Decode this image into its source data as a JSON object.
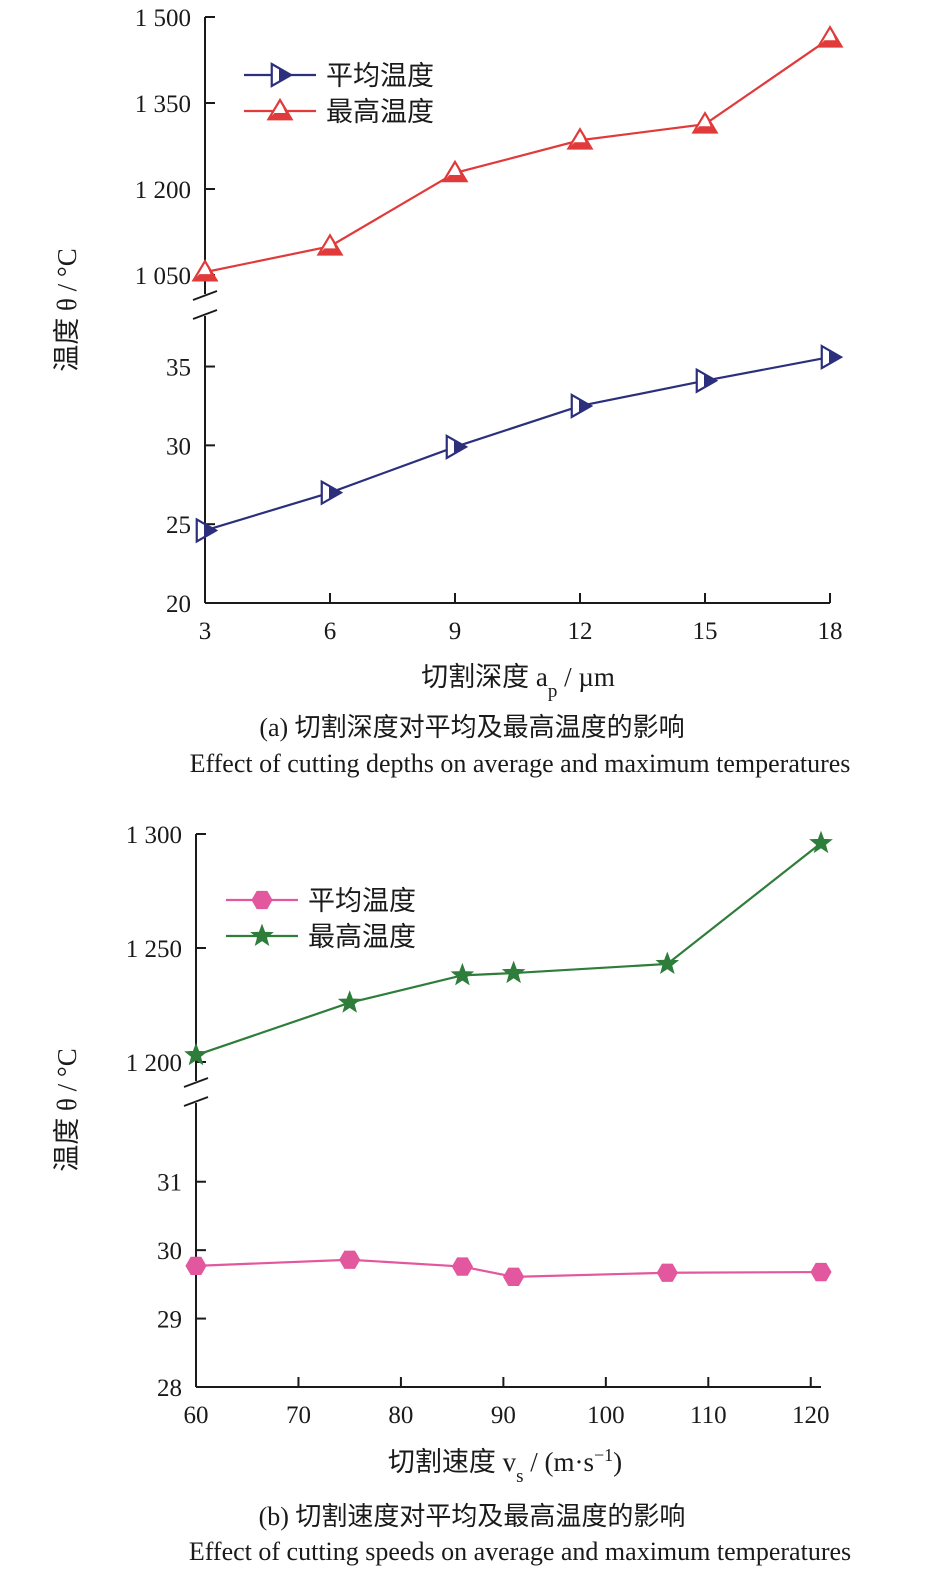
{
  "chart_data": [
    {
      "type": "line",
      "caption_cn": "(a) 切割深度对平均及最高温度的影响",
      "caption_en": "Effect of cutting depths on average and maximum temperatures",
      "xlabel": "切割深度 a",
      "xlabel_sub": "p",
      "xlabel_unit": " / µm",
      "ylabel": "温度 θ / °C",
      "x": [
        3,
        6,
        9,
        12,
        15,
        18
      ],
      "xticks": [
        "3",
        "6",
        "9",
        "12",
        "15",
        "18"
      ],
      "axis_break": true,
      "y_upper": {
        "ylim": [
          1050,
          1500
        ],
        "ticks": [
          1050,
          1200,
          1350,
          1500
        ],
        "tick_labels": [
          "1 050",
          "1 200",
          "1 350",
          "1 500"
        ]
      },
      "y_lower": {
        "ylim": [
          20,
          37
        ],
        "ticks": [
          20,
          25,
          30,
          35
        ],
        "tick_labels": [
          "20",
          "25",
          "30",
          "35"
        ]
      },
      "legend_position": "top-left",
      "series": [
        {
          "name": "平均温度",
          "panel": "lower",
          "marker": "triangle-right",
          "color": "#2b2f7c",
          "values": [
            24.6,
            27.0,
            29.9,
            32.5,
            34.1,
            35.6
          ]
        },
        {
          "name": "最高温度",
          "panel": "upper",
          "marker": "triangle-up",
          "color": "#e03a3a",
          "values": [
            1055,
            1100,
            1228,
            1285,
            1313,
            1463
          ]
        }
      ]
    },
    {
      "type": "line",
      "caption_cn": "(b) 切割速度对平均及最高温度的影响",
      "caption_en": "Effect of cutting speeds on average and maximum temperatures",
      "xlabel": "切割速度 v",
      "xlabel_sub": "s",
      "xlabel_unit": " / (m·s",
      "xlabel_sup": "−1",
      "xlabel_end": ")",
      "ylabel": "温度 θ / °C",
      "x": [
        60,
        75,
        86,
        91,
        106,
        121
      ],
      "xlim": [
        60,
        121
      ],
      "xticks": [
        "60",
        "70",
        "80",
        "90",
        "100",
        "110",
        "120"
      ],
      "axis_break": true,
      "y_upper": {
        "ylim": [
          1200,
          1300
        ],
        "ticks": [
          1200,
          1250,
          1300
        ],
        "tick_labels": [
          "1 200",
          "1 250",
          "1 300"
        ]
      },
      "y_lower": {
        "ylim": [
          28,
          31.8
        ],
        "ticks": [
          28,
          29,
          30,
          31
        ],
        "tick_labels": [
          "28",
          "29",
          "30",
          "31"
        ]
      },
      "legend_position": "top-left",
      "series": [
        {
          "name": "平均温度",
          "panel": "lower",
          "marker": "hexagon",
          "color": "#e3579e",
          "values": [
            29.77,
            29.86,
            29.76,
            29.61,
            29.67,
            29.68
          ]
        },
        {
          "name": "最高温度",
          "panel": "upper",
          "marker": "star",
          "color": "#2e7d3a",
          "values": [
            1203,
            1226,
            1238,
            1239,
            1243,
            1296
          ]
        }
      ]
    }
  ]
}
